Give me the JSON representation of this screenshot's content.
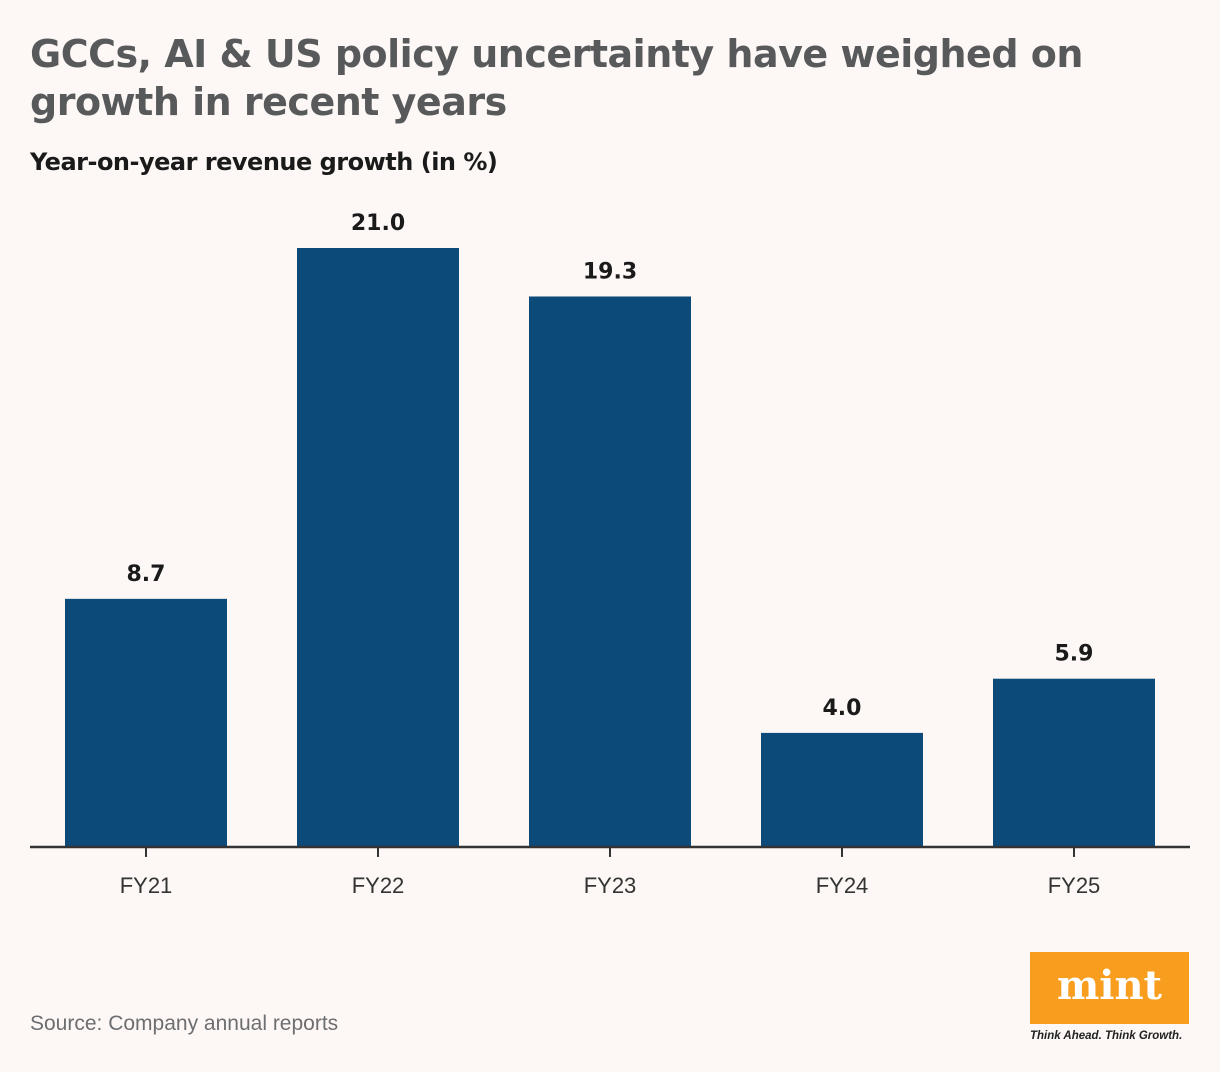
{
  "title": "GCCs, AI & US policy uncertainty have weighed on growth in recent years",
  "subtitle": "Year-on-year revenue growth (in %)",
  "source": "Source: Company annual reports",
  "logo": {
    "text": "mint",
    "tagline": "Think Ahead. Think Growth.",
    "color": "#f89d1e"
  },
  "chart_data": {
    "type": "bar",
    "categories": [
      "FY21",
      "FY22",
      "FY23",
      "FY24",
      "FY25"
    ],
    "values": [
      8.7,
      21.0,
      19.3,
      4.0,
      5.9
    ],
    "data_labels": [
      "8.7",
      "21.0",
      "19.3",
      "4.0",
      "5.9"
    ],
    "ylabel": "Year-on-year revenue growth (in %)",
    "ylim": [
      0,
      21
    ],
    "grid": false,
    "bar_color": "#0c4a7a"
  }
}
